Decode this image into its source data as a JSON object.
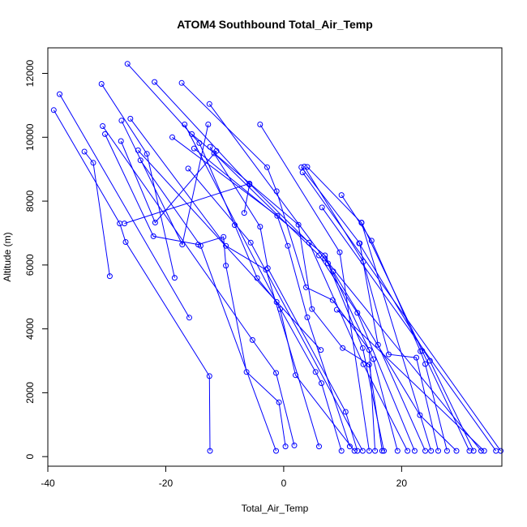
{
  "chart_data": {
    "type": "line",
    "title": "ATOM4 Southbound Total_Air_Temp",
    "xlabel": "Total_Air_Temp",
    "ylabel": "Altitude (m)",
    "xlim": [
      -40,
      37
    ],
    "ylim": [
      -300,
      12800
    ],
    "xticks": [
      -40,
      -20,
      0,
      20
    ],
    "yticks": [
      0,
      2000,
      4000,
      6000,
      8000,
      10000,
      12000
    ],
    "grid": false,
    "legend": "none",
    "marker": "open-circle",
    "series_color": "#0000ff",
    "series": [
      {
        "points": [
          [
            -39.0,
            10850
          ],
          [
            -27.8,
            7300
          ],
          [
            -26.8,
            6720
          ],
          [
            -12.6,
            2520
          ],
          [
            -12.5,
            180
          ]
        ]
      },
      {
        "points": [
          [
            -38.0,
            11350
          ],
          [
            -16.0,
            4350
          ]
        ]
      },
      {
        "points": [
          [
            -33.8,
            9550
          ],
          [
            -32.3,
            9200
          ],
          [
            -29.5,
            5650
          ]
        ]
      },
      {
        "points": [
          [
            -30.9,
            11670
          ],
          [
            -23.2,
            9480
          ],
          [
            -18.5,
            5600
          ]
        ]
      },
      {
        "points": [
          [
            -30.7,
            10350
          ],
          [
            -5.3,
            3650
          ],
          [
            -1.3,
            2620
          ],
          [
            1.8,
            350
          ]
        ]
      },
      {
        "points": [
          [
            -30.3,
            10100
          ],
          [
            -22.1,
            6900
          ],
          [
            -14.5,
            6640
          ],
          [
            -10.2,
            6880
          ],
          [
            -9.8,
            5980
          ],
          [
            -6.3,
            2650
          ],
          [
            -0.8,
            1700
          ],
          [
            0.3,
            320
          ]
        ]
      },
      {
        "points": [
          [
            -27.5,
            10520
          ],
          [
            -17.2,
            6640
          ],
          [
            -12.8,
            10400
          ]
        ]
      },
      {
        "points": [
          [
            -27.6,
            9880
          ],
          [
            -21.8,
            7330
          ],
          [
            -11.4,
            9570
          ]
        ]
      },
      {
        "points": [
          [
            -26.5,
            12300
          ],
          [
            -14.3,
            9820
          ],
          [
            -8.3,
            7250
          ],
          [
            -4.5,
            5590
          ],
          [
            -1.2,
            4840
          ],
          [
            5.4,
            2650
          ],
          [
            6.4,
            2300
          ],
          [
            9.8,
            180
          ]
        ]
      },
      {
        "points": [
          [
            -26.0,
            10580
          ],
          [
            -9.8,
            6600
          ],
          [
            -3.0,
            5850
          ],
          [
            6.0,
            320
          ]
        ]
      },
      {
        "points": [
          [
            -24.7,
            9590
          ],
          [
            6.3,
            3340
          ]
        ]
      },
      {
        "points": [
          [
            -24.3,
            9280
          ],
          [
            -14.1,
            6600
          ],
          [
            -1.3,
            180
          ]
        ]
      },
      {
        "points": [
          [
            -21.9,
            11730
          ],
          [
            -5.8,
            8520
          ],
          [
            -6.7,
            7630
          ]
        ]
      },
      {
        "points": [
          [
            -18.9,
            10000
          ],
          [
            -1.1,
            7540
          ],
          [
            0.7,
            6600
          ],
          [
            4.0,
            4360
          ],
          [
            11.2,
            320
          ]
        ]
      },
      {
        "points": [
          [
            -17.3,
            11700
          ],
          [
            -2.8,
            9060
          ],
          [
            -1.2,
            8310
          ],
          [
            3.8,
            5300
          ],
          [
            8.3,
            4900
          ],
          [
            14.5,
            3340
          ],
          [
            15.5,
            180
          ]
        ]
      },
      {
        "points": [
          [
            -16.8,
            10400
          ],
          [
            -0.6,
            4620
          ],
          [
            2.0,
            2550
          ],
          [
            12.0,
            180
          ]
        ]
      },
      {
        "points": [
          [
            -16.2,
            9020
          ],
          [
            -5.6,
            6700
          ],
          [
            13.4,
            180
          ]
        ]
      },
      {
        "points": [
          [
            -15.6,
            10100
          ],
          [
            2.5,
            7260
          ],
          [
            4.8,
            4620
          ],
          [
            10.0,
            3400
          ],
          [
            14.5,
            2880
          ],
          [
            16.7,
            180
          ]
        ]
      },
      {
        "points": [
          [
            -15.2,
            9650
          ],
          [
            7.0,
            6300
          ],
          [
            15.2,
            3050
          ],
          [
            19.3,
            180
          ]
        ]
      },
      {
        "points": [
          [
            -12.6,
            11040
          ],
          [
            7.5,
            6050
          ],
          [
            13.4,
            3400
          ],
          [
            17.0,
            180
          ]
        ]
      },
      {
        "points": [
          [
            -12.5,
            9700
          ],
          [
            -4.0,
            7200
          ],
          [
            -2.7,
            5900
          ],
          [
            10.5,
            1400
          ],
          [
            12.5,
            180
          ]
        ]
      },
      {
        "points": [
          [
            -11.8,
            9500
          ],
          [
            6.0,
            6300
          ],
          [
            12.5,
            4500
          ],
          [
            22.2,
            180
          ]
        ]
      },
      {
        "points": [
          [
            -27.0,
            7300
          ],
          [
            -5.8,
            8550
          ],
          [
            4.3,
            6700
          ],
          [
            13.5,
            2890
          ],
          [
            21.0,
            180
          ]
        ]
      },
      {
        "points": [
          [
            -4.0,
            10400
          ],
          [
            9.5,
            6400
          ],
          [
            14.5,
            180
          ]
        ]
      },
      {
        "points": [
          [
            3.0,
            9060
          ],
          [
            12.9,
            6680
          ],
          [
            16.0,
            3500
          ],
          [
            24.0,
            180
          ]
        ]
      },
      {
        "points": [
          [
            3.5,
            9080
          ],
          [
            13.5,
            6100
          ],
          [
            17.8,
            3200
          ],
          [
            22.5,
            3100
          ],
          [
            26.2,
            180
          ]
        ]
      },
      {
        "points": [
          [
            4.0,
            9070
          ],
          [
            13.2,
            7320
          ],
          [
            25.0,
            180
          ]
        ]
      },
      {
        "points": [
          [
            9.8,
            8190
          ],
          [
            14.9,
            6760
          ],
          [
            23.2,
            3300
          ],
          [
            24.0,
            2900
          ],
          [
            27.7,
            180
          ]
        ]
      },
      {
        "points": [
          [
            8.4,
            5800
          ],
          [
            23.1,
            1300
          ],
          [
            29.3,
            180
          ]
        ]
      },
      {
        "points": [
          [
            13.2,
            7330
          ],
          [
            23.5,
            3310
          ],
          [
            31.5,
            180
          ]
        ]
      },
      {
        "points": [
          [
            12.8,
            6680
          ],
          [
            24.8,
            3000
          ],
          [
            32.2,
            180
          ]
        ]
      },
      {
        "points": [
          [
            7.0,
            6200
          ],
          [
            33.5,
            180
          ]
        ]
      },
      {
        "points": [
          [
            9.0,
            4600
          ],
          [
            34.0,
            180
          ]
        ]
      },
      {
        "points": [
          [
            6.5,
            7800
          ],
          [
            36.0,
            180
          ]
        ]
      },
      {
        "points": [
          [
            3.2,
            8900
          ],
          [
            36.8,
            180
          ]
        ]
      }
    ]
  }
}
